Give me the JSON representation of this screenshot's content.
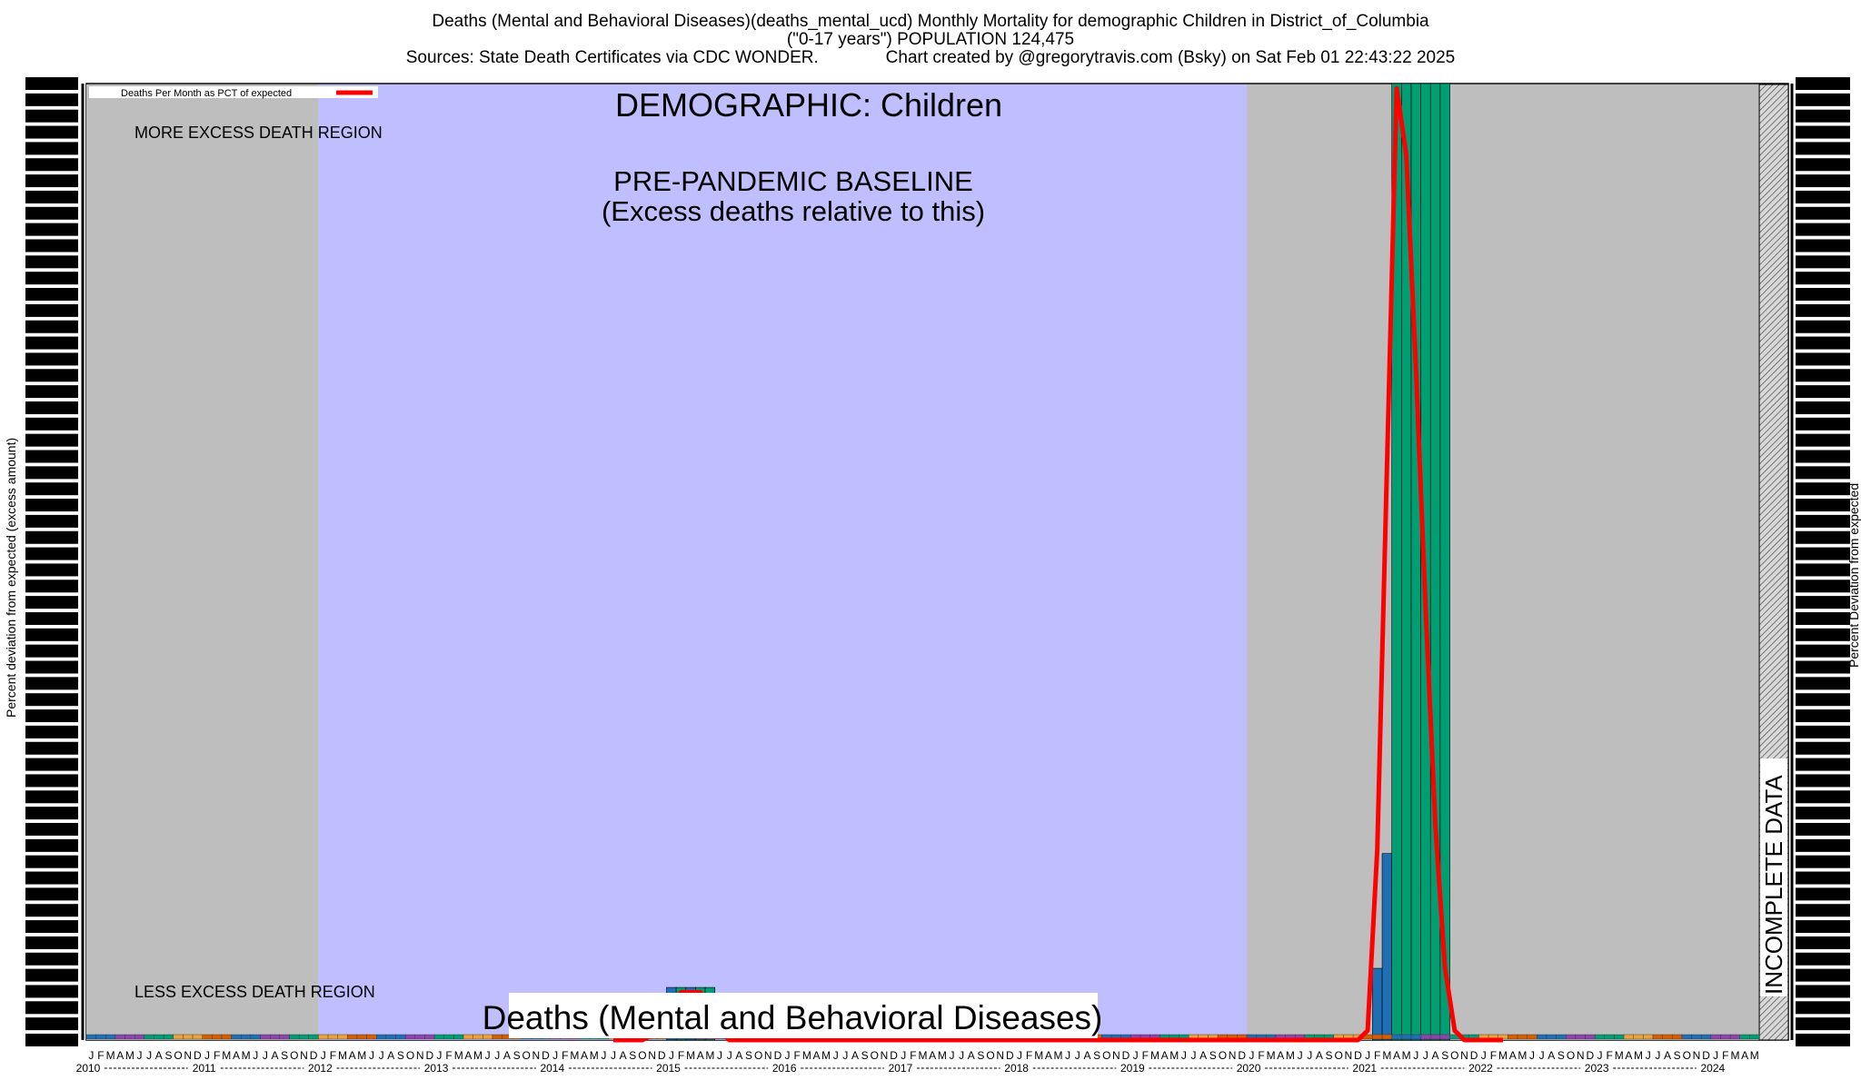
{
  "header": {
    "line1": "Deaths (Mental and Behavioral Diseases)(deaths_mental_ucd) Monthly Mortality for demographic Children in District_of_Columbia",
    "line2": "(\"0-17 years\") POPULATION 124,475",
    "line3": "Sources: State Death Certificates via CDC WONDER.              Chart created by @gregorytravis.com (Bsky) on Sat Feb 01 22:43:22 2025"
  },
  "chart_data": {
    "type": "line",
    "ylabel_left": "Percent deviation from expected (excess amount)",
    "ylabel_right": "Percent Deviation from expected",
    "legend": {
      "entry": "Deaths Per Month as PCT of expected",
      "color": "#ff0000",
      "placement": "top-left"
    },
    "annotations": {
      "demographic": "DEMOGRAPHIC: Children",
      "baseline_title": "PRE-PANDEMIC BASELINE",
      "baseline_sub": "(Excess deaths relative to this)",
      "more_region": "MORE EXCESS DEATH REGION",
      "less_region": "LESS EXCESS DEATH REGION",
      "incomplete": "INCOMPLETE DATA",
      "bottom_title": "Deaths (Mental and Behavioral Diseases)"
    },
    "regions": [
      {
        "name": "gray",
        "start": "2010-01",
        "end": "2011-12",
        "color": "#bebebe"
      },
      {
        "name": "baseline",
        "start": "2012-01",
        "end": "2019-12",
        "color": "#bfbfff"
      },
      {
        "name": "gray",
        "start": "2020-01",
        "end": "2024-05",
        "color": "#bebebe"
      }
    ],
    "incomplete_region": {
      "start": "2024-06",
      "end": "2024-08"
    },
    "x_years": [
      "2010",
      "2011",
      "2012",
      "2013",
      "2014",
      "2015",
      "2016",
      "2017",
      "2018",
      "2019",
      "2020",
      "2021",
      "2022",
      "2023",
      "2024"
    ],
    "month_letters": [
      "J",
      "F",
      "M",
      "A",
      "M",
      "J",
      "J",
      "A",
      "S",
      "O",
      "N",
      "D"
    ],
    "last_year_months": 5,
    "y_range_pct": [
      -100,
      1900
    ],
    "series": [
      {
        "name": "Deaths Per Month as PCT of expected",
        "color": "#ff0000",
        "points": [
          {
            "x": "2014-07",
            "y": -100
          },
          {
            "x": "2014-10",
            "y": -100
          },
          {
            "x": "2014-12",
            "y": -80
          },
          {
            "x": "2015-01",
            "y": -30
          },
          {
            "x": "2015-02",
            "y": 0
          },
          {
            "x": "2015-03",
            "y": 0
          },
          {
            "x": "2015-04",
            "y": 0
          },
          {
            "x": "2015-05",
            "y": -30
          },
          {
            "x": "2015-06",
            "y": -80
          },
          {
            "x": "2015-07",
            "y": -100
          },
          {
            "x": "2015-10",
            "y": -100
          },
          {
            "x": "2020-12",
            "y": -100
          },
          {
            "x": "2021-01",
            "y": -80
          },
          {
            "x": "2021-02",
            "y": 300
          },
          {
            "x": "2021-03",
            "y": 1100
          },
          {
            "x": "2021-04",
            "y": 1890
          },
          {
            "x": "2021-05",
            "y": 1750
          },
          {
            "x": "2021-06",
            "y": 1300
          },
          {
            "x": "2021-07",
            "y": 800
          },
          {
            "x": "2021-08",
            "y": 350
          },
          {
            "x": "2021-09",
            "y": 50
          },
          {
            "x": "2021-10",
            "y": -80
          },
          {
            "x": "2021-11",
            "y": -100
          },
          {
            "x": "2022-03",
            "y": -100
          }
        ]
      }
    ],
    "bars": [
      {
        "x": "2015-01",
        "y": 10,
        "color": "#1f6fb4"
      },
      {
        "x": "2015-02",
        "y": 10,
        "color": "#009e73"
      },
      {
        "x": "2015-03",
        "y": 10,
        "color": "#1f6fb4"
      },
      {
        "x": "2015-04",
        "y": 10,
        "color": "#009e73"
      },
      {
        "x": "2015-05",
        "y": 10,
        "color": "#009e73"
      },
      {
        "x": "2021-02",
        "y": 50,
        "color": "#1f6fb4"
      },
      {
        "x": "2021-03",
        "y": 290,
        "color": "#1f6fb4"
      },
      {
        "x": "2021-04",
        "y": 1900,
        "color": "#009e73"
      },
      {
        "x": "2021-05",
        "y": 1900,
        "color": "#009e73"
      },
      {
        "x": "2021-06",
        "y": 1900,
        "color": "#009e73"
      },
      {
        "x": "2021-07",
        "y": 1900,
        "color": "#009e73"
      },
      {
        "x": "2021-08",
        "y": 1900,
        "color": "#009e73"
      },
      {
        "x": "2021-09",
        "y": 1900,
        "color": "#009e73"
      }
    ],
    "colors": {
      "gray": "#bebebe",
      "baseline": "#bfbfff",
      "line": "#ff0000"
    }
  }
}
